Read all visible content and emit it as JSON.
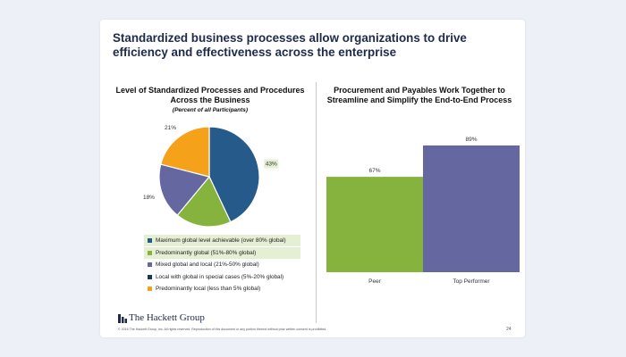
{
  "title": {
    "line1": "Standardized business processes allow organizations to drive",
    "line2": "efficiency and effectiveness across the enterprise"
  },
  "footer": {
    "logo": "The Hackett Group",
    "copyright": "© 2016 The Hackett Group, Inc.  All rights reserved.  Reproduction of this document or any portion thereof without prior written consent is prohibited.",
    "page": "24"
  },
  "colors": {
    "blue": "#255a8a",
    "green": "#86b33e",
    "purple": "#6567a0",
    "orange": "#f5a11a",
    "highlight": "#e4efd4"
  },
  "chart_data": [
    {
      "type": "pie",
      "title_line1": "Level of Standardized Processes and Procedures",
      "title_line2": "Across the Business",
      "subtitle": "(Percent of all Participants)",
      "slices": [
        {
          "label": "Maximum global level achievable (over 80% global)",
          "value": 43,
          "value_label": "43%",
          "color": "#255a8a",
          "highlight": true
        },
        {
          "label": "Predominantly global (51%-80% global)",
          "value": 18,
          "value_label": "18%",
          "color": "#86b33e",
          "highlight": true
        },
        {
          "label": "Mixed global and local (21%-50% global)",
          "value": 18,
          "value_label": "18%",
          "color": "#6567a0",
          "highlight": false
        },
        {
          "label": "Local with global in special cases (5%-20% global)",
          "value": 0,
          "value_label": "",
          "color": "#1f3556",
          "highlight": false
        },
        {
          "label": "Predominantly local (less than 5% global)",
          "value": 21,
          "value_label": "21%",
          "color": "#f5a11a",
          "highlight": false
        }
      ],
      "legend_placement": "bottom"
    },
    {
      "type": "bar",
      "title_line1": "Procurement and Payables Work Together to",
      "title_line2": "Streamline and Simplify the End-to-End Process",
      "categories": [
        "Peer",
        "Top Performer"
      ],
      "values": [
        67,
        89
      ],
      "value_labels": [
        "67%",
        "89%"
      ],
      "colors": [
        "#86b33e",
        "#6567a0"
      ],
      "ylim": [
        0,
        100
      ],
      "grid": false
    }
  ]
}
